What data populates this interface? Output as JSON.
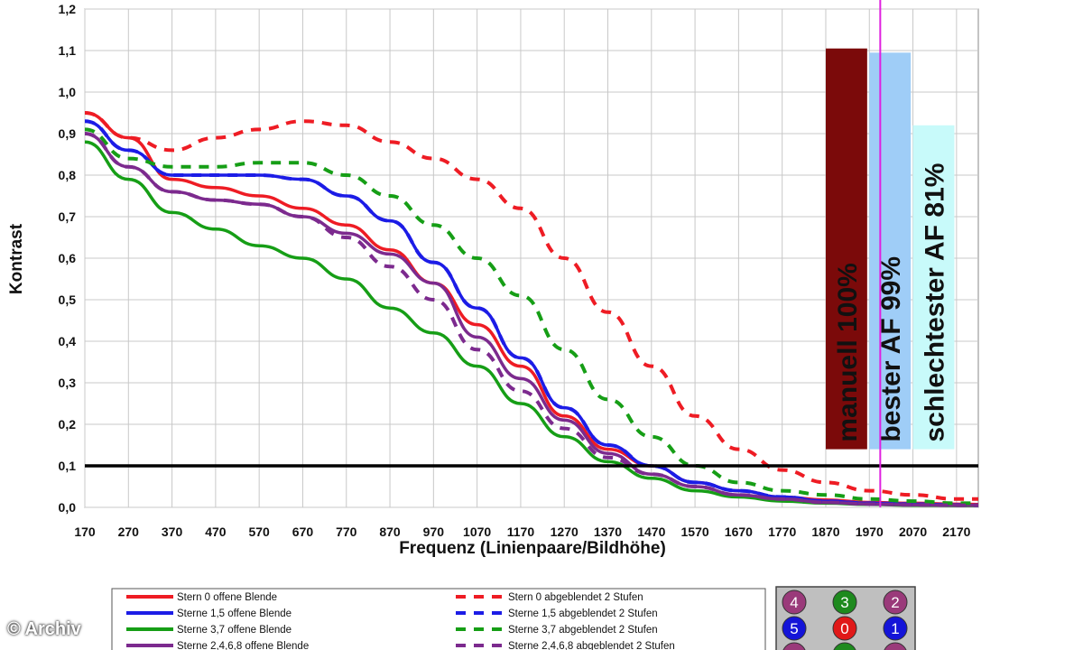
{
  "chart_data": {
    "type": "line",
    "title": "",
    "xlabel": "Frequenz (Linienpaare/Bildhöhe)",
    "ylabel": "Kontrast",
    "xlim": [
      170,
      2220
    ],
    "ylim": [
      0,
      1.2
    ],
    "x_ticks": [
      "170",
      "270",
      "370",
      "470",
      "570",
      "670",
      "770",
      "870",
      "970",
      "1070",
      "1170",
      "1270",
      "1370",
      "1470",
      "1570",
      "1670",
      "1770",
      "1870",
      "1970",
      "2070",
      "2170"
    ],
    "y_ticks": [
      "0,0",
      "0,1",
      "0,2",
      "0,3",
      "0,4",
      "0,5",
      "0,6",
      "0,7",
      "0,8",
      "0,9",
      "1,0",
      "1,1",
      "1,2"
    ],
    "grid": true,
    "x": [
      170,
      270,
      370,
      470,
      570,
      670,
      770,
      870,
      970,
      1070,
      1170,
      1270,
      1370,
      1470,
      1570,
      1670,
      1770,
      1870,
      1970,
      2070,
      2170,
      2220
    ],
    "series": [
      {
        "name": "Stern 0 offene Blende",
        "color": "#ee1c24",
        "dash": false,
        "values": [
          0.95,
          0.89,
          0.79,
          0.77,
          0.75,
          0.72,
          0.68,
          0.62,
          0.54,
          0.44,
          0.34,
          0.22,
          0.14,
          0.1,
          0.06,
          0.04,
          0.025,
          0.018,
          0.012,
          0.01,
          0.008,
          0.007
        ]
      },
      {
        "name": "Sterne 1,5 offene Blende",
        "color": "#1c1ce6",
        "dash": false,
        "values": [
          0.93,
          0.86,
          0.8,
          0.8,
          0.8,
          0.79,
          0.75,
          0.69,
          0.59,
          0.48,
          0.36,
          0.24,
          0.15,
          0.1,
          0.06,
          0.04,
          0.025,
          0.015,
          0.01,
          0.008,
          0.006,
          0.005
        ]
      },
      {
        "name": "Sterne 3,7 offene Blende",
        "color": "#169e16",
        "dash": false,
        "values": [
          0.88,
          0.79,
          0.71,
          0.67,
          0.63,
          0.6,
          0.55,
          0.48,
          0.42,
          0.34,
          0.25,
          0.17,
          0.11,
          0.07,
          0.04,
          0.025,
          0.015,
          0.01,
          0.007,
          0.005,
          0.004,
          0.004
        ]
      },
      {
        "name": "Sterne 2,4,6,8 offene Blende",
        "color": "#7c2a8e",
        "dash": false,
        "values": [
          0.9,
          0.82,
          0.76,
          0.74,
          0.73,
          0.7,
          0.66,
          0.61,
          0.54,
          0.41,
          0.31,
          0.21,
          0.13,
          0.08,
          0.05,
          0.03,
          0.02,
          0.012,
          0.008,
          0.006,
          0.005,
          0.005
        ]
      },
      {
        "name": "Stern 0 abgeblendet 2 Stufen",
        "color": "#ee1c24",
        "dash": true,
        "values": [
          0.95,
          0.89,
          0.86,
          0.89,
          0.91,
          0.93,
          0.92,
          0.88,
          0.84,
          0.79,
          0.72,
          0.6,
          0.47,
          0.34,
          0.22,
          0.14,
          0.09,
          0.06,
          0.04,
          0.03,
          0.02,
          0.02
        ]
      },
      {
        "name": "Sterne 1,5 abgeblendet 2 Stufen",
        "color": "#1c1ce6",
        "dash": true,
        "values": [
          0.93,
          0.86,
          0.8,
          0.8,
          0.8,
          0.79,
          0.75,
          0.69,
          0.59,
          0.48,
          0.36,
          0.24,
          0.15,
          0.1,
          0.06,
          0.04,
          0.025,
          0.015,
          0.01,
          0.008,
          0.006,
          0.005
        ]
      },
      {
        "name": "Sterne 3,7 abgeblendet 2 Stufen",
        "color": "#169e16",
        "dash": true,
        "values": [
          0.91,
          0.84,
          0.82,
          0.82,
          0.83,
          0.83,
          0.8,
          0.75,
          0.68,
          0.6,
          0.51,
          0.38,
          0.26,
          0.17,
          0.1,
          0.06,
          0.04,
          0.03,
          0.02,
          0.015,
          0.01,
          0.01
        ]
      },
      {
        "name": "Sterne 2,4,6,8 abgeblendet 2 Stufen",
        "color": "#7c2a8e",
        "dash": true,
        "values": [
          0.9,
          0.82,
          0.76,
          0.74,
          0.73,
          0.7,
          0.65,
          0.58,
          0.5,
          0.38,
          0.28,
          0.19,
          0.12,
          0.08,
          0.05,
          0.03,
          0.02,
          0.012,
          0.008,
          0.006,
          0.005,
          0.005
        ]
      }
    ],
    "reference_line": {
      "value": 0.1,
      "color": "#000000"
    },
    "vertical_line": {
      "x": 1995,
      "color": "#e020e0"
    },
    "bars": [
      {
        "label": "manuell 100%",
        "x_start": 1870,
        "x_end": 1965,
        "top": 1.105,
        "bottom": 0.14,
        "color": "#7b0a0a"
      },
      {
        "label": "bester AF 99%",
        "x_start": 1970,
        "x_end": 2065,
        "top": 1.095,
        "bottom": 0.14,
        "color": "#9fcdf7"
      },
      {
        "label": "schlechtester AF 81%",
        "x_start": 2070,
        "x_end": 2165,
        "top": 0.92,
        "bottom": 0.14,
        "color": "#c8fafa"
      }
    ],
    "legend": {
      "placement": "bottom"
    },
    "sensor_grid": {
      "rows": [
        [
          {
            "label": "4",
            "color": "#9a3a7a"
          },
          {
            "label": "3",
            "color": "#1e8a1e"
          },
          {
            "label": "2",
            "color": "#9a3a7a"
          }
        ],
        [
          {
            "label": "5",
            "color": "#1414d8"
          },
          {
            "label": "0",
            "color": "#e01818"
          },
          {
            "label": "1",
            "color": "#1414d8"
          }
        ],
        [
          {
            "label": "",
            "color": "#9a3a7a"
          },
          {
            "label": "",
            "color": "#1e8a1e"
          },
          {
            "label": "",
            "color": "#9a3a7a"
          }
        ]
      ]
    }
  },
  "copyright": "© Archiv"
}
